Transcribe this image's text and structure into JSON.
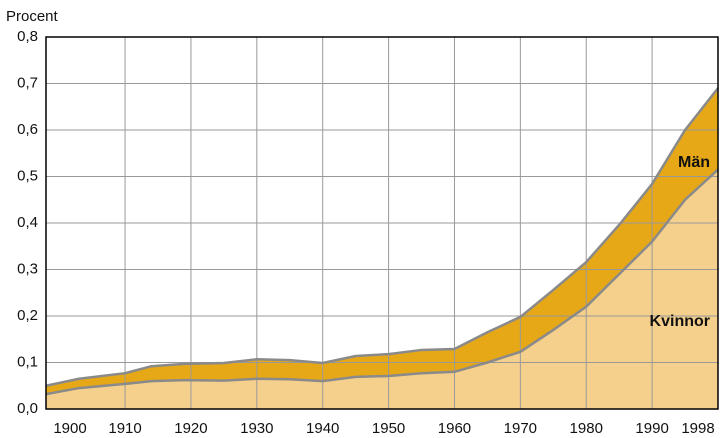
{
  "chart_data": {
    "type": "stacked_area",
    "y_label": "Procent",
    "x": [
      1898,
      1903,
      1910,
      1914,
      1919,
      1925,
      1930,
      1935,
      1940,
      1945,
      1950,
      1955,
      1960,
      1965,
      1970,
      1975,
      1980,
      1985,
      1990,
      1995,
      2000
    ],
    "series": [
      {
        "name": "Kvinnor",
        "color": "#f5d08c",
        "values": [
          0.032,
          0.045,
          0.054,
          0.06,
          0.062,
          0.061,
          0.065,
          0.064,
          0.06,
          0.069,
          0.071,
          0.077,
          0.08,
          0.1,
          0.123,
          0.17,
          0.22,
          0.29,
          0.36,
          0.45,
          0.515
        ]
      },
      {
        "name": "Män",
        "color": "#e6a817",
        "values": [
          0.018,
          0.02,
          0.023,
          0.032,
          0.035,
          0.038,
          0.042,
          0.041,
          0.039,
          0.045,
          0.047,
          0.05,
          0.049,
          0.065,
          0.075,
          0.086,
          0.096,
          0.106,
          0.124,
          0.15,
          0.175
        ]
      }
    ],
    "xlim": [
      1898,
      2000
    ],
    "xticks": [
      1900,
      1910,
      1920,
      1930,
      1940,
      1950,
      1960,
      1970,
      1980,
      1990,
      1998
    ],
    "ylim": [
      0,
      0.8
    ],
    "yticks": [
      {
        "value": 0,
        "label": "0,0"
      },
      {
        "value": 0.1,
        "label": "0,1"
      },
      {
        "value": 0.2,
        "label": "0,2"
      },
      {
        "value": 0.3,
        "label": "0,3"
      },
      {
        "value": 0.4,
        "label": "0,4"
      },
      {
        "value": 0.5,
        "label": "0,5"
      },
      {
        "value": 0.6,
        "label": "0,6"
      },
      {
        "value": 0.7,
        "label": "0,7"
      },
      {
        "value": 0.8,
        "label": "0,8"
      }
    ],
    "grid": true
  }
}
